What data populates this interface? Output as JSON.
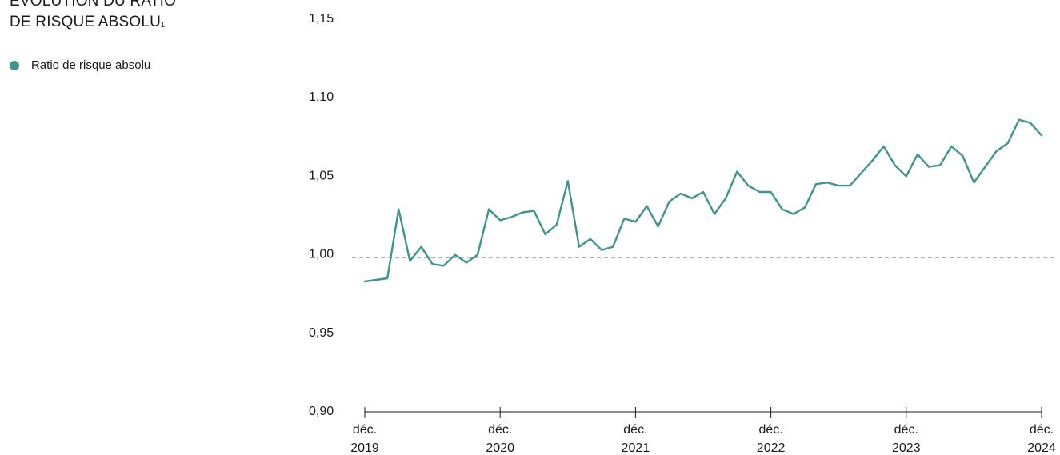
{
  "title_line1": "ÉVOLUTION DU RATIO",
  "title_line2": "DE RISQUE ABSOLU",
  "title_sup": "1",
  "legend": {
    "label": "Ratio de risque absolu"
  },
  "colors": {
    "series": "#3e948e",
    "reference": "#b3b3b3",
    "axis": "#1a1a1a"
  },
  "chart_data": {
    "type": "line",
    "title": "ÉVOLUTION DU RATIO DE RISQUE ABSOLU",
    "xlabel": "",
    "ylabel": "",
    "ylim": [
      0.9,
      1.15
    ],
    "yticks": [
      "1,15",
      "1,10",
      "1,05",
      "1,00",
      "0,95",
      "0,90"
    ],
    "ytick_values": [
      1.15,
      1.1,
      1.05,
      1.0,
      0.95,
      0.9
    ],
    "xticks": [
      {
        "line1": "déc.",
        "line2": "2019"
      },
      {
        "line1": "déc.",
        "line2": "2020"
      },
      {
        "line1": "déc.",
        "line2": "2021"
      },
      {
        "line1": "déc.",
        "line2": "2022"
      },
      {
        "line1": "déc.",
        "line2": "2023"
      },
      {
        "line1": "déc.",
        "line2": "2024"
      }
    ],
    "reference_line": 0.997,
    "grid": false,
    "legend_position": "top-left",
    "series": [
      {
        "name": "Ratio de risque absolu",
        "start": "2019-12",
        "frequency": "monthly",
        "values": [
          0.982,
          0.983,
          0.984,
          1.028,
          0.995,
          1.004,
          0.993,
          0.992,
          0.999,
          0.994,
          0.999,
          1.028,
          1.021,
          1.023,
          1.026,
          1.027,
          1.012,
          1.018,
          1.046,
          1.004,
          1.009,
          1.002,
          1.004,
          1.022,
          1.02,
          1.03,
          1.017,
          1.033,
          1.038,
          1.035,
          1.039,
          1.025,
          1.035,
          1.052,
          1.043,
          1.039,
          1.039,
          1.028,
          1.025,
          1.029,
          1.044,
          1.045,
          1.043,
          1.043,
          1.051,
          1.059,
          1.068,
          1.056,
          1.049,
          1.063,
          1.055,
          1.056,
          1.068,
          1.062,
          1.045,
          1.055,
          1.065,
          1.07,
          1.085,
          1.083,
          1.075
        ]
      }
    ]
  }
}
